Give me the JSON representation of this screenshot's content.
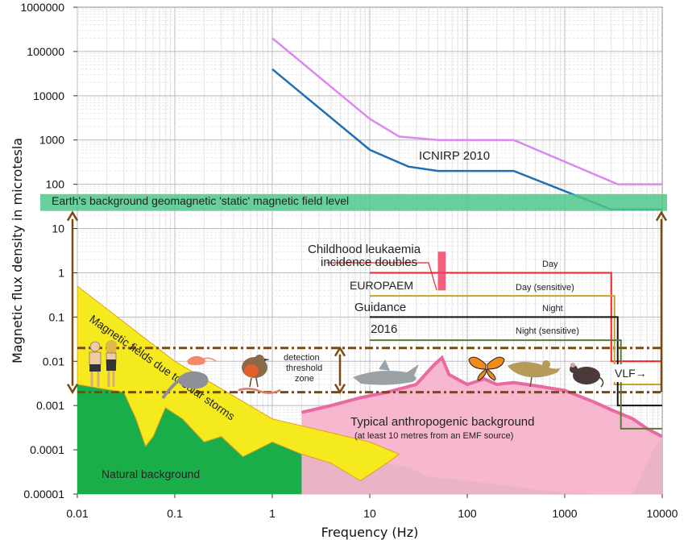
{
  "chart_data": {
    "type": "line",
    "xlabel": "Frequency (Hz)",
    "ylabel": "Magnetic  flux  density  in  microtesla",
    "xscale": "log",
    "yscale": "log",
    "xlim": [
      0.01,
      10000
    ],
    "ylim": [
      1e-05,
      1000000
    ],
    "grid": true,
    "x_ticks": [
      "0.01",
      "0.1",
      "1",
      "10",
      "100",
      "1000",
      "10000"
    ],
    "y_ticks": [
      "0.00001",
      "0.0001",
      "0.001",
      "0.01",
      "0.1",
      "1",
      "10",
      "100",
      "1000",
      "10000",
      "100000",
      "1000000"
    ],
    "series": [
      {
        "name": "",
        "color": "#dd88ee",
        "points": [
          [
            1,
            200000
          ],
          [
            10,
            3000
          ],
          [
            20,
            1200
          ],
          [
            50,
            1000
          ],
          [
            300,
            1000
          ],
          [
            3500,
            100
          ],
          [
            10000,
            100
          ]
        ]
      },
      {
        "name": "ICNIRP 2010",
        "color": "#1f6fb5",
        "points": [
          [
            1,
            40000
          ],
          [
            10,
            600
          ],
          [
            25,
            250
          ],
          [
            50,
            200
          ],
          [
            300,
            200
          ],
          [
            3000,
            27
          ],
          [
            10000,
            27
          ]
        ]
      }
    ],
    "europaem": {
      "day": {
        "label": "Day",
        "value": 1,
        "color": "#e8232a"
      },
      "day_sensitive": {
        "label": "Day (sensitive)",
        "value": 0.3,
        "color": "#c9a227"
      },
      "night": {
        "label": "Night",
        "value": 0.1,
        "color": "#111111"
      },
      "night_sensitive": {
        "label": "Night (sensitive)",
        "value": 0.03,
        "color": "#5a7a3a"
      },
      "start_freq": 10,
      "end_freq": 3000,
      "vlf": {
        "label": "VLF→",
        "day": 0.01,
        "day_sensitive": 0.003,
        "night": 0.001,
        "night_sensitive": 0.0003
      }
    },
    "annotations": {
      "icnirp": "ICNIRP 2010",
      "geomagnetic": "Earth's background geomagnetic 'static' magnetic field level",
      "leukaemia_line1": "Childhood leukaemia",
      "leukaemia_line2": "incidence doubles",
      "europaem1": "EUROPAEM",
      "europaem2": "Guidance",
      "europaem3": "2016",
      "solar": "Magnetic fields due to solar storms",
      "detection1": "detection",
      "detection2": "threshold",
      "detection3": "zone",
      "anthro1": "Typical anthropogenic background",
      "anthro2": "(at least 10 metres from an EMF source)",
      "natural": "Natural background"
    },
    "geomagnetic_band": {
      "low": 25,
      "high": 60,
      "color": "#4fc88a"
    },
    "detection_zone": {
      "low": 0.002,
      "high": 0.02
    },
    "leukaemia_range": {
      "f_low": 50,
      "f_high": 60,
      "b_low": 0.4,
      "b_high": 3
    },
    "solar_storm": {
      "color": "#f5ea1e",
      "upper": [
        [
          0.01,
          0.5
        ],
        [
          0.1,
          0.01
        ],
        [
          1,
          0.0005
        ],
        [
          10,
          0.00015
        ],
        [
          20,
          8e-05
        ]
      ]
    },
    "natural_background": {
      "color": "#1aae4a",
      "points": [
        [
          0.01,
          0.003
        ],
        [
          0.03,
          0.002
        ],
        [
          0.04,
          0.0005
        ],
        [
          0.05,
          0.00012
        ],
        [
          0.06,
          0.0002
        ],
        [
          0.08,
          0.0009
        ],
        [
          0.12,
          0.0005
        ],
        [
          0.2,
          0.00015
        ],
        [
          0.3,
          0.0002
        ],
        [
          0.5,
          7e-05
        ],
        [
          1,
          0.00015
        ],
        [
          2,
          8e-05
        ],
        [
          4,
          5e-05
        ],
        [
          8,
          2e-05
        ],
        [
          15,
          5e-05
        ],
        [
          25,
          4e-05
        ],
        [
          40,
          2.5e-05
        ],
        [
          100,
          2e-05
        ],
        [
          300,
          1.5e-05
        ],
        [
          600,
          1.2e-05
        ],
        [
          2000,
          1e-05
        ],
        [
          5000,
          1e-05
        ],
        [
          8000,
          0.0001
        ],
        [
          10000,
          0.0002
        ]
      ]
    },
    "anthropogenic_background": {
      "color": "#f7b3cc",
      "edge_color": "#e86aa0",
      "points": [
        [
          2,
          0.0007
        ],
        [
          4,
          0.001
        ],
        [
          8,
          0.0015
        ],
        [
          15,
          0.002
        ],
        [
          30,
          0.003
        ],
        [
          45,
          0.008
        ],
        [
          55,
          0.012
        ],
        [
          65,
          0.005
        ],
        [
          100,
          0.003
        ],
        [
          150,
          0.004
        ],
        [
          200,
          0.003
        ],
        [
          300,
          0.0033
        ],
        [
          500,
          0.0028
        ],
        [
          1000,
          0.0022
        ],
        [
          2000,
          0.0012
        ],
        [
          3000,
          0.0008
        ],
        [
          5000,
          0.0005
        ],
        [
          7000,
          0.0003
        ],
        [
          10000,
          0.0002
        ]
      ]
    }
  }
}
